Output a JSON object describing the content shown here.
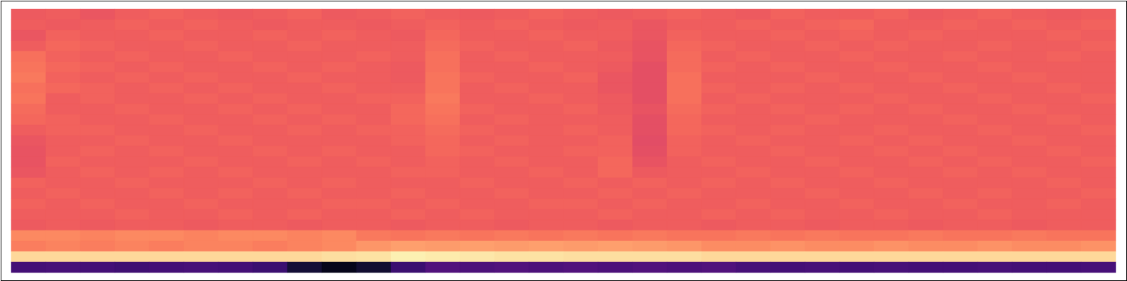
{
  "chart_data": {
    "type": "heatmap",
    "tick_labels": false,
    "color": "magma",
    "color_range": [
      0,
      1
    ],
    "cells": [
      [
        0.65,
        0.66,
        0.64,
        0.66,
        0.67,
        0.66,
        0.65,
        0.66,
        0.67,
        0.65,
        0.66,
        0.67,
        0.66,
        0.65,
        0.66,
        0.67,
        0.66,
        0.65,
        0.66,
        0.67,
        0.66,
        0.65,
        0.67,
        0.66,
        0.66,
        0.67,
        0.65,
        0.66,
        0.67,
        0.66,
        0.65,
        0.66
      ],
      [
        0.66,
        0.65,
        0.66,
        0.67,
        0.66,
        0.67,
        0.66,
        0.65,
        0.66,
        0.66,
        0.65,
        0.66,
        0.67,
        0.66,
        0.67,
        0.66,
        0.65,
        0.66,
        0.64,
        0.66,
        0.66,
        0.67,
        0.66,
        0.67,
        0.68,
        0.66,
        0.66,
        0.67,
        0.66,
        0.67,
        0.66,
        0.67
      ],
      [
        0.64,
        0.67,
        0.66,
        0.66,
        0.67,
        0.66,
        0.66,
        0.67,
        0.66,
        0.67,
        0.66,
        0.65,
        0.68,
        0.66,
        0.66,
        0.67,
        0.66,
        0.66,
        0.64,
        0.67,
        0.66,
        0.66,
        0.67,
        0.66,
        0.67,
        0.66,
        0.67,
        0.66,
        0.66,
        0.66,
        0.67,
        0.66
      ],
      [
        0.66,
        0.68,
        0.67,
        0.66,
        0.66,
        0.67,
        0.66,
        0.66,
        0.67,
        0.66,
        0.66,
        0.66,
        0.69,
        0.67,
        0.66,
        0.66,
        0.67,
        0.65,
        0.63,
        0.68,
        0.67,
        0.66,
        0.66,
        0.67,
        0.66,
        0.67,
        0.66,
        0.66,
        0.67,
        0.66,
        0.66,
        0.67
      ],
      [
        0.7,
        0.67,
        0.66,
        0.67,
        0.66,
        0.66,
        0.67,
        0.66,
        0.66,
        0.66,
        0.67,
        0.66,
        0.7,
        0.66,
        0.67,
        0.66,
        0.66,
        0.66,
        0.63,
        0.69,
        0.66,
        0.67,
        0.66,
        0.66,
        0.67,
        0.66,
        0.66,
        0.67,
        0.66,
        0.66,
        0.67,
        0.66
      ],
      [
        0.71,
        0.68,
        0.67,
        0.66,
        0.67,
        0.66,
        0.66,
        0.67,
        0.66,
        0.67,
        0.66,
        0.65,
        0.7,
        0.66,
        0.66,
        0.67,
        0.66,
        0.65,
        0.62,
        0.69,
        0.67,
        0.66,
        0.67,
        0.66,
        0.66,
        0.67,
        0.66,
        0.66,
        0.67,
        0.66,
        0.66,
        0.66
      ],
      [
        0.72,
        0.67,
        0.66,
        0.67,
        0.66,
        0.67,
        0.66,
        0.66,
        0.67,
        0.66,
        0.66,
        0.65,
        0.71,
        0.67,
        0.66,
        0.66,
        0.67,
        0.64,
        0.62,
        0.7,
        0.66,
        0.66,
        0.66,
        0.67,
        0.66,
        0.66,
        0.67,
        0.66,
        0.66,
        0.67,
        0.66,
        0.66
      ],
      [
        0.7,
        0.68,
        0.67,
        0.66,
        0.67,
        0.66,
        0.67,
        0.66,
        0.66,
        0.67,
        0.66,
        0.66,
        0.71,
        0.66,
        0.67,
        0.66,
        0.66,
        0.64,
        0.62,
        0.7,
        0.67,
        0.66,
        0.67,
        0.66,
        0.67,
        0.66,
        0.66,
        0.67,
        0.66,
        0.66,
        0.67,
        0.66
      ],
      [
        0.71,
        0.66,
        0.67,
        0.66,
        0.66,
        0.67,
        0.66,
        0.67,
        0.66,
        0.66,
        0.67,
        0.67,
        0.72,
        0.66,
        0.66,
        0.67,
        0.66,
        0.65,
        0.62,
        0.7,
        0.66,
        0.67,
        0.66,
        0.66,
        0.66,
        0.67,
        0.66,
        0.66,
        0.67,
        0.66,
        0.66,
        0.67
      ],
      [
        0.69,
        0.66,
        0.66,
        0.67,
        0.66,
        0.66,
        0.67,
        0.66,
        0.67,
        0.66,
        0.66,
        0.68,
        0.71,
        0.67,
        0.66,
        0.66,
        0.67,
        0.65,
        0.63,
        0.69,
        0.67,
        0.66,
        0.67,
        0.66,
        0.67,
        0.66,
        0.67,
        0.66,
        0.66,
        0.67,
        0.66,
        0.66
      ],
      [
        0.68,
        0.67,
        0.66,
        0.66,
        0.67,
        0.66,
        0.66,
        0.67,
        0.66,
        0.67,
        0.66,
        0.68,
        0.7,
        0.66,
        0.67,
        0.66,
        0.66,
        0.66,
        0.62,
        0.68,
        0.66,
        0.66,
        0.66,
        0.67,
        0.66,
        0.66,
        0.66,
        0.67,
        0.66,
        0.66,
        0.67,
        0.66
      ],
      [
        0.66,
        0.67,
        0.67,
        0.66,
        0.66,
        0.67,
        0.66,
        0.66,
        0.67,
        0.66,
        0.67,
        0.67,
        0.69,
        0.67,
        0.66,
        0.66,
        0.67,
        0.66,
        0.62,
        0.68,
        0.67,
        0.66,
        0.67,
        0.66,
        0.66,
        0.67,
        0.66,
        0.66,
        0.67,
        0.66,
        0.66,
        0.67
      ],
      [
        0.64,
        0.66,
        0.66,
        0.67,
        0.66,
        0.66,
        0.67,
        0.66,
        0.66,
        0.66,
        0.66,
        0.67,
        0.68,
        0.66,
        0.67,
        0.66,
        0.66,
        0.67,
        0.61,
        0.67,
        0.66,
        0.67,
        0.66,
        0.66,
        0.67,
        0.66,
        0.67,
        0.66,
        0.66,
        0.67,
        0.66,
        0.66
      ],
      [
        0.63,
        0.66,
        0.67,
        0.66,
        0.67,
        0.66,
        0.66,
        0.67,
        0.66,
        0.67,
        0.66,
        0.66,
        0.68,
        0.67,
        0.66,
        0.66,
        0.67,
        0.67,
        0.62,
        0.67,
        0.66,
        0.66,
        0.67,
        0.66,
        0.66,
        0.67,
        0.66,
        0.67,
        0.66,
        0.66,
        0.67,
        0.66
      ],
      [
        0.63,
        0.67,
        0.66,
        0.66,
        0.66,
        0.67,
        0.66,
        0.66,
        0.67,
        0.66,
        0.67,
        0.66,
        0.67,
        0.66,
        0.67,
        0.66,
        0.66,
        0.68,
        0.63,
        0.66,
        0.67,
        0.66,
        0.66,
        0.67,
        0.66,
        0.66,
        0.67,
        0.66,
        0.67,
        0.66,
        0.66,
        0.67
      ],
      [
        0.64,
        0.66,
        0.67,
        0.66,
        0.67,
        0.66,
        0.67,
        0.66,
        0.66,
        0.66,
        0.66,
        0.67,
        0.67,
        0.66,
        0.66,
        0.67,
        0.66,
        0.68,
        0.65,
        0.66,
        0.66,
        0.67,
        0.66,
        0.66,
        0.67,
        0.66,
        0.66,
        0.67,
        0.66,
        0.67,
        0.66,
        0.66
      ],
      [
        0.67,
        0.66,
        0.66,
        0.67,
        0.66,
        0.66,
        0.66,
        0.67,
        0.66,
        0.67,
        0.66,
        0.66,
        0.66,
        0.67,
        0.66,
        0.66,
        0.67,
        0.66,
        0.67,
        0.66,
        0.67,
        0.66,
        0.67,
        0.66,
        0.66,
        0.67,
        0.66,
        0.66,
        0.66,
        0.66,
        0.67,
        0.66
      ],
      [
        0.66,
        0.67,
        0.66,
        0.66,
        0.67,
        0.66,
        0.67,
        0.66,
        0.67,
        0.66,
        0.66,
        0.67,
        0.66,
        0.66,
        0.67,
        0.66,
        0.66,
        0.67,
        0.66,
        0.67,
        0.66,
        0.66,
        0.66,
        0.67,
        0.66,
        0.66,
        0.67,
        0.66,
        0.67,
        0.66,
        0.66,
        0.67
      ],
      [
        0.67,
        0.66,
        0.67,
        0.66,
        0.66,
        0.67,
        0.66,
        0.66,
        0.66,
        0.67,
        0.67,
        0.66,
        0.67,
        0.66,
        0.66,
        0.67,
        0.67,
        0.66,
        0.67,
        0.66,
        0.66,
        0.67,
        0.66,
        0.66,
        0.67,
        0.66,
        0.66,
        0.67,
        0.66,
        0.66,
        0.67,
        0.66
      ],
      [
        0.66,
        0.66,
        0.66,
        0.67,
        0.66,
        0.66,
        0.67,
        0.66,
        0.67,
        0.66,
        0.66,
        0.67,
        0.66,
        0.67,
        0.66,
        0.66,
        0.66,
        0.67,
        0.66,
        0.66,
        0.67,
        0.66,
        0.67,
        0.66,
        0.66,
        0.67,
        0.66,
        0.66,
        0.67,
        0.66,
        0.66,
        0.66
      ],
      [
        0.65,
        0.66,
        0.65,
        0.66,
        0.66,
        0.65,
        0.66,
        0.66,
        0.65,
        0.66,
        0.66,
        0.65,
        0.66,
        0.66,
        0.65,
        0.66,
        0.66,
        0.65,
        0.66,
        0.66,
        0.65,
        0.66,
        0.66,
        0.65,
        0.66,
        0.66,
        0.65,
        0.66,
        0.66,
        0.65,
        0.66,
        0.66
      ],
      [
        0.75,
        0.75,
        0.74,
        0.75,
        0.75,
        0.74,
        0.75,
        0.75,
        0.74,
        0.75,
        0.72,
        0.71,
        0.72,
        0.71,
        0.72,
        0.71,
        0.72,
        0.71,
        0.72,
        0.71,
        0.71,
        0.72,
        0.71,
        0.72,
        0.71,
        0.71,
        0.72,
        0.71,
        0.71,
        0.72,
        0.71,
        0.71
      ],
      [
        0.73,
        0.74,
        0.73,
        0.74,
        0.73,
        0.74,
        0.74,
        0.73,
        0.74,
        0.75,
        0.78,
        0.8,
        0.79,
        0.8,
        0.79,
        0.8,
        0.79,
        0.8,
        0.79,
        0.78,
        0.76,
        0.76,
        0.77,
        0.76,
        0.76,
        0.77,
        0.76,
        0.76,
        0.77,
        0.76,
        0.76,
        0.77
      ],
      [
        0.92,
        0.92,
        0.92,
        0.92,
        0.92,
        0.92,
        0.92,
        0.92,
        0.92,
        0.93,
        0.94,
        0.97,
        0.96,
        0.95,
        0.94,
        0.94,
        0.93,
        0.93,
        0.93,
        0.93,
        0.92,
        0.92,
        0.92,
        0.92,
        0.92,
        0.92,
        0.92,
        0.92,
        0.92,
        0.92,
        0.92,
        0.92
      ],
      [
        0.22,
        0.23,
        0.22,
        0.21,
        0.22,
        0.23,
        0.22,
        0.2,
        0.1,
        0.05,
        0.09,
        0.2,
        0.25,
        0.24,
        0.25,
        0.24,
        0.25,
        0.24,
        0.25,
        0.24,
        0.25,
        0.23,
        0.22,
        0.23,
        0.22,
        0.23,
        0.22,
        0.22,
        0.23,
        0.22,
        0.22,
        0.23
      ]
    ]
  }
}
